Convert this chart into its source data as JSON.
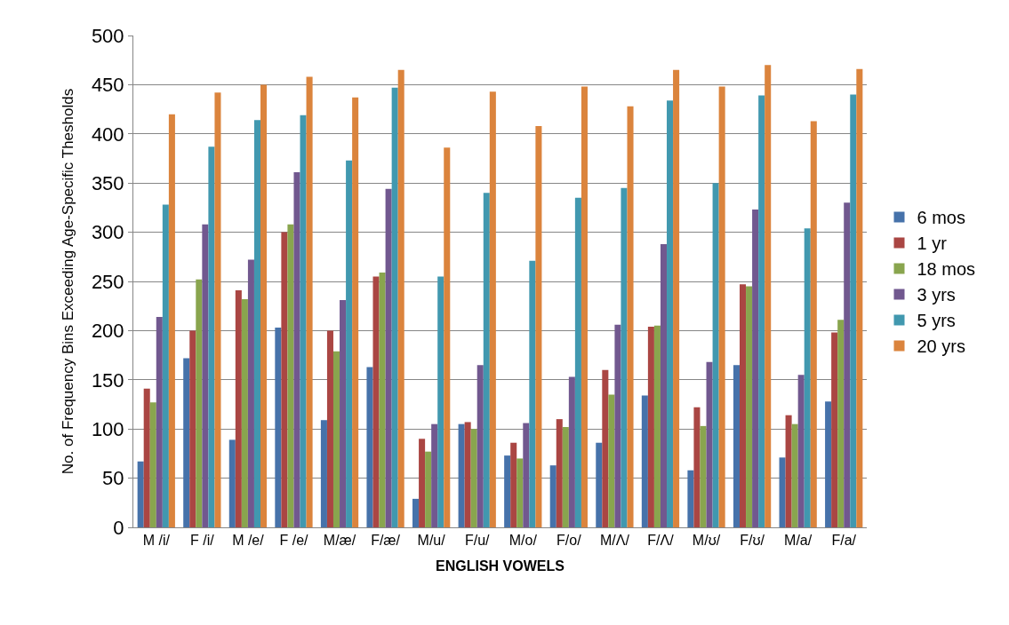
{
  "chart_data": {
    "type": "bar",
    "xlabel": "ENGLISH VOWELS",
    "ylabel": "No. of Frequency Bins Exceeding Age-Specific Thesholds",
    "categories": [
      "M /i/",
      "F /i/",
      "M /e/",
      "F /e/",
      "M/æ/",
      "F/æ/",
      "M/u/",
      "F/u/",
      "M/o/",
      "F/o/",
      "M/Λ/",
      "F/Λ/",
      "M/ʊ/",
      "F/ʊ/",
      "M/a/",
      "F/a/"
    ],
    "series": [
      {
        "name": "6 mos",
        "color": "#4672aa",
        "values": [
          67,
          172,
          89,
          203,
          109,
          163,
          29,
          105,
          73,
          63,
          86,
          134,
          58,
          165,
          71,
          128
        ]
      },
      {
        "name": "1 yr",
        "color": "#aa4643",
        "values": [
          141,
          200,
          241,
          300,
          200,
          255,
          90,
          107,
          86,
          110,
          160,
          204,
          122,
          247,
          114,
          198
        ]
      },
      {
        "name": "18 mos",
        "color": "#89a54e",
        "values": [
          127,
          252,
          232,
          308,
          179,
          259,
          77,
          100,
          70,
          102,
          135,
          205,
          103,
          245,
          105,
          211
        ]
      },
      {
        "name": "3 yrs",
        "color": "#71588f",
        "values": [
          214,
          308,
          272,
          361,
          231,
          344,
          105,
          165,
          106,
          153,
          206,
          288,
          168,
          323,
          155,
          330
        ]
      },
      {
        "name": "5 yrs",
        "color": "#4198af",
        "values": [
          328,
          387,
          414,
          419,
          373,
          447,
          255,
          340,
          271,
          335,
          345,
          434,
          350,
          439,
          304,
          440
        ]
      },
      {
        "name": "20 yrs",
        "color": "#db843d",
        "values": [
          420,
          442,
          450,
          458,
          437,
          465,
          386,
          443,
          408,
          448,
          428,
          465,
          448,
          470,
          413,
          466
        ]
      }
    ],
    "ylim": [
      0,
      500
    ],
    "yticks": [
      0,
      50,
      100,
      150,
      200,
      250,
      300,
      350,
      400,
      450,
      500
    ],
    "grid": "y",
    "legend": "right"
  }
}
